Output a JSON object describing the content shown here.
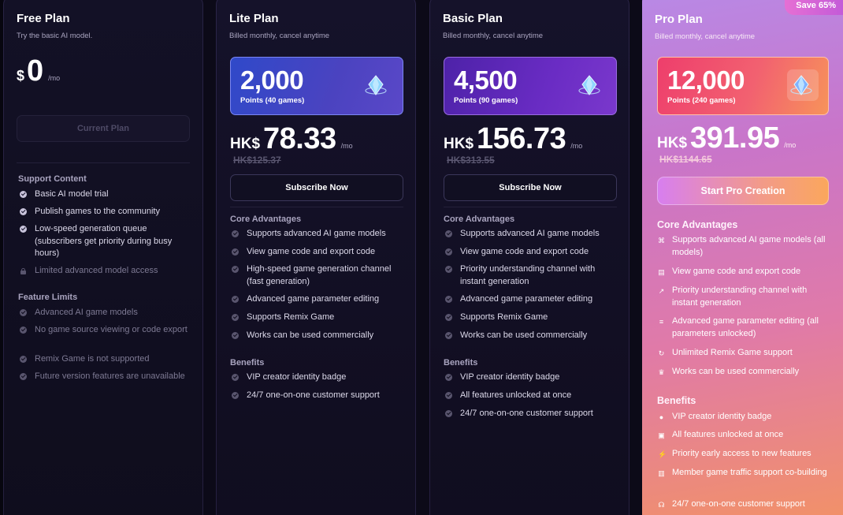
{
  "free": {
    "name": "Free Plan",
    "subtitle": "Try the basic AI model.",
    "currency": "$",
    "price": "0",
    "per": "/mo",
    "button": "Current Plan",
    "support_title": "Support Content",
    "support": [
      "Basic AI model trial",
      "Publish games to the community",
      "Low-speed generation queue (subscribers get priority during busy hours)",
      "Limited advanced model access"
    ],
    "limits_title": "Feature Limits",
    "limits": [
      "Advanced AI game models",
      "No game source viewing or code export",
      "Remix Game is not supported",
      "Future version features are unavailable"
    ]
  },
  "lite": {
    "name": "Lite Plan",
    "subtitle": "Billed monthly, cancel anytime",
    "points": "2,000",
    "points_sub": "Points (40 games)",
    "currency": "HK$",
    "price": "78.33",
    "per": "/mo",
    "old_price": "HK$125.37",
    "button": "Subscribe Now",
    "core_title": "Core Advantages",
    "core": [
      "Supports advanced AI game models",
      "View game code and export code",
      "High-speed game generation channel (fast generation)",
      "Advanced game parameter editing",
      "Supports Remix Game",
      "Works can be used commercially"
    ],
    "benefits_title": "Benefits",
    "benefits": [
      "VIP creator identity badge",
      "24/7 one-on-one customer support"
    ]
  },
  "basic": {
    "name": "Basic Plan",
    "subtitle": "Billed monthly, cancel anytime",
    "points": "4,500",
    "points_sub": "Points (90 games)",
    "currency": "HK$",
    "price": "156.73",
    "per": "/mo",
    "old_price": "HK$313.55",
    "button": "Subscribe Now",
    "core_title": "Core Advantages",
    "core": [
      "Supports advanced AI game models",
      "View game code and export code",
      "Priority understanding channel with instant generation",
      "Advanced game parameter editing",
      "Supports Remix Game",
      "Works can be used commercially"
    ],
    "benefits_title": "Benefits",
    "benefits": [
      "VIP creator identity badge",
      "All features unlocked at once",
      "24/7 one-on-one customer support"
    ]
  },
  "pro": {
    "name": "Pro Plan",
    "badge": "Save 65%",
    "subtitle": "Billed monthly, cancel anytime",
    "points": "12,000",
    "points_sub": "Points (240 games)",
    "currency": "HK$",
    "price": "391.95",
    "per": "/mo",
    "old_price": "HK$1144.65",
    "button": "Start Pro Creation",
    "core_title": "Core Advantages",
    "core": [
      "Supports advanced AI game models (all models)",
      "View game code and export code",
      "Priority understanding channel with instant generation",
      "Advanced game parameter editing (all parameters unlocked)",
      "Unlimited Remix Game support",
      "Works can be used commercially"
    ],
    "core_icons": [
      "gamepad-icon",
      "code-icon",
      "trend-up-icon",
      "sliders-icon",
      "refresh-icon",
      "crown-icon"
    ],
    "benefits_title": "Benefits",
    "benefits": [
      "VIP creator identity badge",
      "All features unlocked at once",
      "Priority early access to new features",
      "Member game traffic support co-building",
      "24/7 one-on-one customer support"
    ],
    "benefit_icons": [
      "badge-icon",
      "gift-icon",
      "bolt-icon",
      "chart-icon",
      "headset-icon"
    ]
  },
  "colors": {
    "page_bg": "#0c0a18",
    "lite_points": "#3a48c8",
    "basic_points": "#5f29b8",
    "pro_points": "#f15a6e",
    "pro_card": "#d47bb8"
  }
}
